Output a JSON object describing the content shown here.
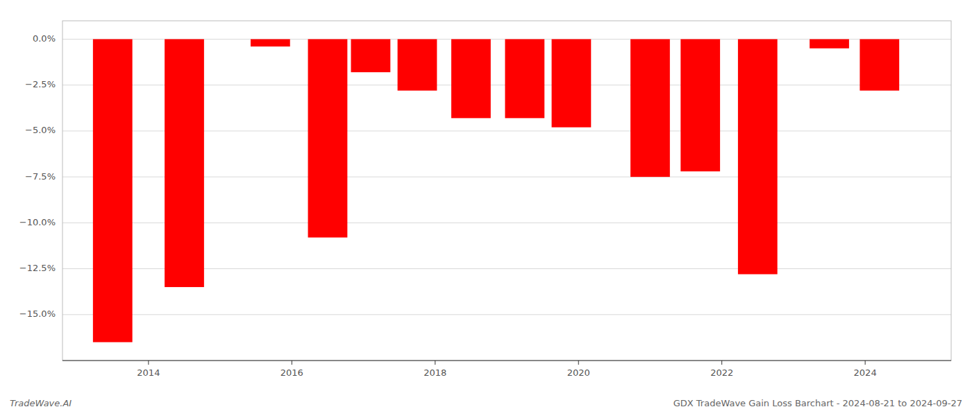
{
  "chart_data": {
    "type": "bar",
    "x": [
      2013.5,
      2014.5,
      2015.7,
      2016.5,
      2017.1,
      2017.75,
      2018.5,
      2019.25,
      2019.9,
      2021.0,
      2021.7,
      2022.5,
      2023.5,
      2024.2
    ],
    "values": [
      -16.5,
      -13.5,
      -0.4,
      -10.8,
      -1.8,
      -2.8,
      -4.3,
      -4.3,
      -4.8,
      -7.5,
      -7.2,
      -12.8,
      -0.5,
      -2.8
    ],
    "color": "#ff0000",
    "xlim": [
      2012.8,
      2025.2
    ],
    "xticks": [
      2014,
      2016,
      2018,
      2020,
      2022,
      2024
    ],
    "ylim": [
      -17.5,
      1.0
    ],
    "yticks": [
      {
        "value": 0.0,
        "label": "0.0%"
      },
      {
        "value": -2.5,
        "label": "−2.5%"
      },
      {
        "value": -5.0,
        "label": "−5.0%"
      },
      {
        "value": -7.5,
        "label": "−7.5%"
      },
      {
        "value": -10.0,
        "label": "−10.0%"
      },
      {
        "value": -12.5,
        "label": "−12.5%"
      },
      {
        "value": -15.0,
        "label": "−15.0%"
      }
    ],
    "grid": true,
    "annotations": [
      "TradeWave.AI",
      "GDX TradeWave Gain Loss Barchart - 2024-08-21 to 2024-09-27"
    ]
  }
}
